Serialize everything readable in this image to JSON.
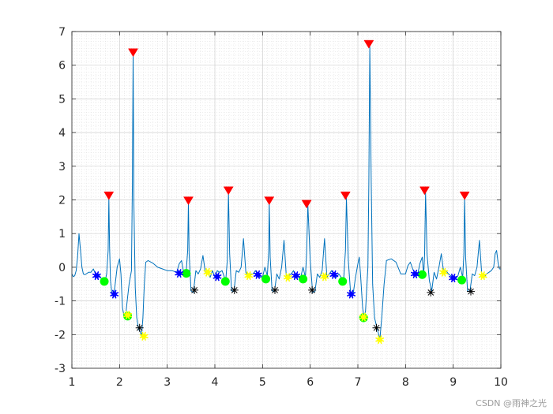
{
  "chart_data": {
    "type": "line",
    "title": "",
    "xlabel": "",
    "ylabel": "",
    "xlim": [
      1,
      10
    ],
    "ylim": [
      -3,
      7
    ],
    "xticks": [
      1,
      2,
      3,
      4,
      5,
      6,
      7,
      8,
      9,
      10
    ],
    "yticks": [
      -3,
      -2,
      -1,
      0,
      1,
      2,
      3,
      4,
      5,
      6,
      7
    ],
    "grid": "major and minor dotted",
    "line_color": "#0072BD",
    "signal": {
      "x": [
        1.0,
        1.03,
        1.06,
        1.09,
        1.12,
        1.15,
        1.18,
        1.21,
        1.24,
        1.27,
        1.3,
        1.35,
        1.4,
        1.45,
        1.5,
        1.55,
        1.6,
        1.65,
        1.7,
        1.73,
        1.76,
        1.775,
        1.79,
        1.81,
        1.84,
        1.87,
        1.9,
        1.95,
        2.0,
        2.03,
        2.06,
        2.1,
        2.13,
        2.16,
        2.2,
        2.25,
        2.27,
        2.285,
        2.3,
        2.33,
        2.36,
        2.4,
        2.43,
        2.46,
        2.49,
        2.52,
        2.55,
        2.6,
        2.7,
        2.8,
        2.9,
        3.0,
        3.1,
        3.2,
        3.25,
        3.3,
        3.35,
        3.4,
        3.43,
        3.445,
        3.46,
        3.5,
        3.55,
        3.6,
        3.65,
        3.7,
        3.75,
        3.8,
        3.85,
        3.9,
        3.95,
        4.0,
        4.05,
        4.1,
        4.15,
        4.2,
        4.23,
        4.26,
        4.285,
        4.31,
        4.35,
        4.4,
        4.45,
        4.5,
        4.55,
        4.6,
        4.65,
        4.7,
        4.75,
        4.8,
        4.85,
        4.9,
        4.95,
        5.0,
        5.05,
        5.1,
        5.13,
        5.14,
        5.16,
        5.2,
        5.25,
        5.3,
        5.35,
        5.4,
        5.45,
        5.5,
        5.55,
        5.6,
        5.65,
        5.7,
        5.75,
        5.8,
        5.85,
        5.9,
        5.925,
        5.95,
        6.0,
        6.05,
        6.1,
        6.15,
        6.2,
        6.25,
        6.3,
        6.35,
        6.4,
        6.45,
        6.5,
        6.55,
        6.6,
        6.65,
        6.7,
        6.74,
        6.76,
        6.8,
        6.85,
        6.9,
        6.95,
        7.0,
        7.03,
        7.06,
        7.1,
        7.13,
        7.16,
        7.19,
        7.21,
        7.23,
        7.25,
        7.28,
        7.31,
        7.35,
        7.4,
        7.43,
        7.46,
        7.5,
        7.55,
        7.6,
        7.7,
        7.8,
        7.9,
        8.0,
        8.05,
        8.1,
        8.15,
        8.2,
        8.25,
        8.3,
        8.35,
        8.38,
        8.4,
        8.42,
        8.45,
        8.5,
        8.55,
        8.6,
        8.65,
        8.7,
        8.75,
        8.8,
        8.85,
        8.9,
        8.95,
        9.0,
        9.05,
        9.1,
        9.15,
        9.2,
        9.225,
        9.24,
        9.26,
        9.3,
        9.35,
        9.4,
        9.45,
        9.5,
        9.55,
        9.6,
        9.65,
        9.7,
        9.75,
        9.8,
        9.85,
        9.88,
        9.91,
        9.94,
        9.97,
        10.0
      ],
      "y": [
        -0.2,
        -0.28,
        -0.25,
        -0.1,
        0.3,
        1.0,
        0.5,
        0.0,
        -0.2,
        -0.22,
        -0.2,
        -0.15,
        -0.15,
        -0.05,
        -0.22,
        -0.2,
        -0.3,
        -0.4,
        -0.4,
        -0.2,
        0.5,
        2.05,
        0.6,
        -0.4,
        -0.8,
        -0.85,
        -0.6,
        0.0,
        0.25,
        -0.2,
        -1.2,
        -1.5,
        -1.4,
        -1.0,
        -0.5,
        -0.1,
        2.5,
        6.3,
        2.0,
        -0.6,
        -1.5,
        -1.85,
        -1.9,
        -2.05,
        -1.5,
        -0.5,
        0.15,
        0.2,
        0.12,
        0.0,
        -0.05,
        -0.1,
        -0.1,
        -0.15,
        0.1,
        0.2,
        -0.2,
        -0.1,
        0.5,
        1.95,
        0.4,
        -0.7,
        -0.75,
        -0.1,
        -0.2,
        -0.05,
        0.35,
        -0.15,
        -0.1,
        -0.3,
        -0.1,
        -0.3,
        -0.1,
        -0.15,
        -0.1,
        -0.3,
        -0.35,
        0.2,
        2.2,
        0.4,
        -0.7,
        -0.72,
        -0.1,
        -0.15,
        0.0,
        0.85,
        -0.15,
        -0.25,
        -0.2,
        -0.2,
        -0.1,
        -0.2,
        -0.3,
        -0.3,
        0.0,
        -0.25,
        0.5,
        1.95,
        0.3,
        -0.7,
        -0.72,
        -0.2,
        -0.35,
        0.0,
        0.8,
        -0.3,
        -0.25,
        -0.2,
        -0.1,
        -0.3,
        -0.25,
        -0.3,
        0.0,
        -0.3,
        0.4,
        1.85,
        0.2,
        -0.75,
        -0.72,
        -0.2,
        -0.3,
        -0.1,
        0.85,
        -0.3,
        -0.2,
        -0.1,
        -0.2,
        -0.3,
        -0.2,
        -0.3,
        -0.4,
        0.5,
        2.05,
        0.2,
        -0.8,
        -0.8,
        -0.3,
        0.1,
        0.3,
        -0.3,
        -1.2,
        -1.5,
        -1.3,
        -0.5,
        0.0,
        2.5,
        6.55,
        2.5,
        -0.5,
        -1.5,
        -1.8,
        -1.95,
        -2.15,
        -1.5,
        -0.5,
        0.2,
        0.25,
        0.15,
        -0.2,
        -0.2,
        0.05,
        0.15,
        -0.05,
        -0.2,
        -0.25,
        0.1,
        0.3,
        -0.25,
        0.4,
        2.2,
        0.4,
        -0.4,
        -0.7,
        -0.15,
        -0.35,
        0.0,
        0.4,
        -0.15,
        -0.1,
        -0.2,
        -0.25,
        -0.3,
        -0.35,
        -0.25,
        0.0,
        -0.3,
        0.4,
        2.05,
        0.3,
        -0.7,
        -0.72,
        -0.2,
        -0.25,
        0.0,
        0.8,
        -0.25,
        -0.3,
        -0.2,
        -0.15,
        -0.1,
        0.0,
        0.4,
        0.5,
        0.15,
        -0.05,
        -0.05
      ]
    },
    "markers": [
      {
        "name": "red-peaks",
        "shape": "triangle-down",
        "color": "#ff0000",
        "x": [
          1.775,
          2.285,
          3.445,
          4.285,
          5.14,
          5.925,
          6.74,
          7.23,
          8.4,
          9.24
        ],
        "y": [
          2.1,
          6.35,
          1.95,
          2.25,
          1.95,
          1.85,
          2.1,
          6.6,
          2.25,
          2.1
        ]
      },
      {
        "name": "green-dots",
        "shape": "circle",
        "color": "#00ff00",
        "x": [
          1.68,
          2.17,
          3.4,
          4.22,
          5.07,
          5.85,
          6.68,
          7.12,
          8.35,
          9.18
        ],
        "y": [
          -0.42,
          -1.45,
          -0.18,
          -0.42,
          -0.35,
          -0.35,
          -0.42,
          -1.5,
          -0.22,
          -0.38
        ]
      },
      {
        "name": "blue-stars",
        "shape": "star",
        "color": "#0000ff",
        "x": [
          1.52,
          1.89,
          3.25,
          4.05,
          4.9,
          5.7,
          6.5,
          6.86,
          8.2,
          9.0
        ],
        "y": [
          -0.25,
          -0.8,
          -0.18,
          -0.28,
          -0.22,
          -0.25,
          -0.22,
          -0.8,
          -0.2,
          -0.32
        ]
      },
      {
        "name": "black-asterisks",
        "shape": "asterisk",
        "color": "#000000",
        "x": [
          2.42,
          3.57,
          4.41,
          5.26,
          6.04,
          7.39,
          8.53,
          9.37
        ],
        "y": [
          -1.8,
          -0.68,
          -0.68,
          -0.68,
          -0.68,
          -1.8,
          -0.75,
          -0.72
        ]
      },
      {
        "name": "yellow-stars",
        "shape": "star",
        "color": "#ffff00",
        "x": [
          2.17,
          2.51,
          3.85,
          4.71,
          5.53,
          6.3,
          7.12,
          7.46,
          8.8,
          9.62
        ],
        "y": [
          -1.42,
          -2.05,
          -0.15,
          -0.25,
          -0.3,
          -0.28,
          -1.48,
          -2.15,
          -0.15,
          -0.25
        ]
      }
    ]
  },
  "watermark": "CSDN @雨神之光"
}
